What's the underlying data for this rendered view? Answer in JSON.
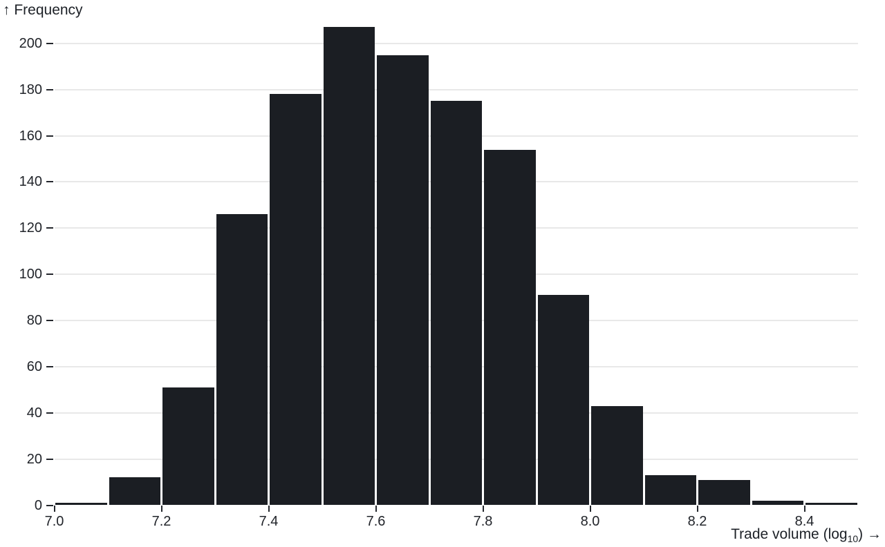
{
  "chart_data": {
    "type": "bar",
    "subtype": "histogram",
    "title": "",
    "y_label": "↑ Frequency",
    "x_label_pre": "Trade volume (log",
    "x_label_sub": "10",
    "x_label_post": ") →",
    "xlabel_plain": "Trade volume (log10) →",
    "ylabel_plain": "Frequency",
    "bin_width": 0.1,
    "xlim": [
      7.0,
      8.5
    ],
    "ylim": [
      0,
      207
    ],
    "grid": true,
    "legend": false,
    "bins": [
      {
        "start": 7.0,
        "end": 7.1,
        "count": 1
      },
      {
        "start": 7.1,
        "end": 7.2,
        "count": 12
      },
      {
        "start": 7.2,
        "end": 7.3,
        "count": 51
      },
      {
        "start": 7.3,
        "end": 7.4,
        "count": 126
      },
      {
        "start": 7.4,
        "end": 7.5,
        "count": 178
      },
      {
        "start": 7.5,
        "end": 7.6,
        "count": 207
      },
      {
        "start": 7.6,
        "end": 7.7,
        "count": 195
      },
      {
        "start": 7.7,
        "end": 7.8,
        "count": 175
      },
      {
        "start": 7.8,
        "end": 7.9,
        "count": 154
      },
      {
        "start": 7.9,
        "end": 8.0,
        "count": 91
      },
      {
        "start": 8.0,
        "end": 8.1,
        "count": 43
      },
      {
        "start": 8.1,
        "end": 8.2,
        "count": 13
      },
      {
        "start": 8.2,
        "end": 8.3,
        "count": 11
      },
      {
        "start": 8.3,
        "end": 8.4,
        "count": 2
      },
      {
        "start": 8.4,
        "end": 8.5,
        "count": 1
      }
    ],
    "x_ticks": [
      7.0,
      7.2,
      7.4,
      7.6,
      7.8,
      8.0,
      8.2,
      8.4
    ],
    "x_tick_labels": [
      "7.0",
      "7.2",
      "7.4",
      "7.6",
      "7.8",
      "8.0",
      "8.2",
      "8.4"
    ],
    "y_ticks": [
      0,
      20,
      40,
      60,
      80,
      100,
      120,
      140,
      160,
      180,
      200
    ],
    "y_tick_labels": [
      "0",
      "20",
      "40",
      "60",
      "80",
      "100",
      "120",
      "140",
      "160",
      "180",
      "200"
    ],
    "colors": {
      "bar": "#1b1e23",
      "grid": "#e8e8e8",
      "tick": "#23262c",
      "text": "#21242a",
      "background": "#ffffff"
    }
  }
}
